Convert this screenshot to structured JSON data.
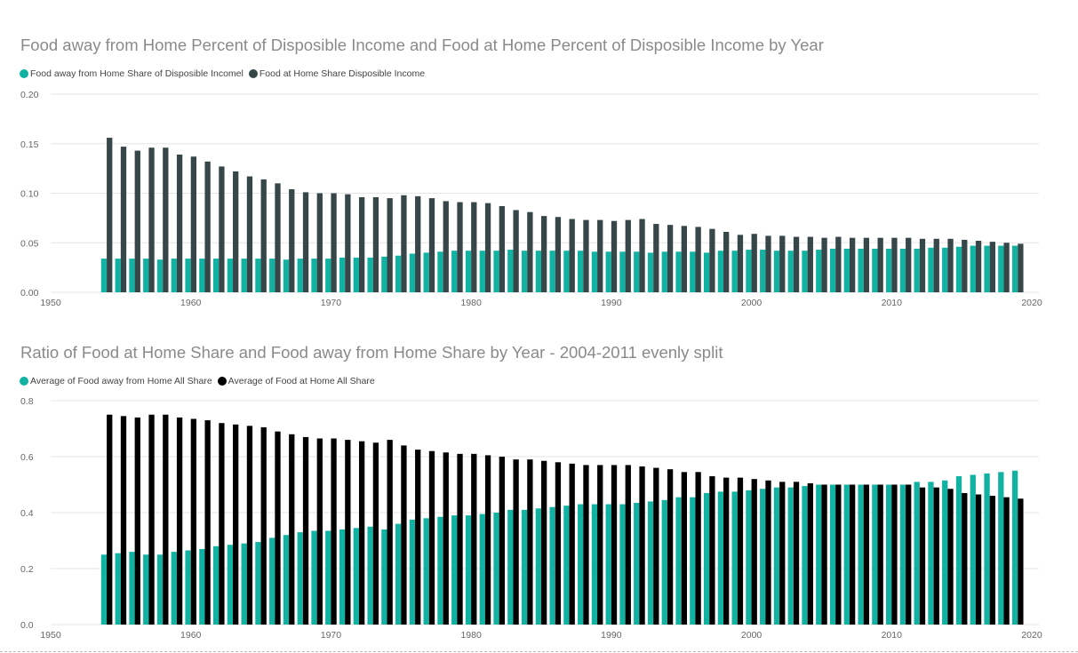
{
  "colors": {
    "teal": "#12b2a3",
    "dark": "#374649",
    "black": "#000000"
  },
  "chart_data": [
    {
      "type": "bar",
      "title": "Food away from Home Percent of Disposible Income and Food at Home Percent of Disposible Income by Year",
      "legend_position": "top-left",
      "grid": true,
      "xlim": [
        1950,
        2020
      ],
      "xticks": [
        1950,
        1960,
        1970,
        1980,
        1990,
        2000,
        2010,
        2020
      ],
      "ylim": [
        0,
        0.2
      ],
      "yticks": [
        "0.00",
        "0.05",
        "0.10",
        "0.15",
        "0.20"
      ],
      "x": [
        1954,
        1955,
        1956,
        1957,
        1958,
        1959,
        1960,
        1961,
        1962,
        1963,
        1964,
        1965,
        1966,
        1967,
        1968,
        1969,
        1970,
        1971,
        1972,
        1973,
        1974,
        1975,
        1976,
        1977,
        1978,
        1979,
        1980,
        1981,
        1982,
        1983,
        1984,
        1985,
        1986,
        1987,
        1988,
        1989,
        1990,
        1991,
        1992,
        1993,
        1994,
        1995,
        1996,
        1997,
        1998,
        1999,
        2000,
        2001,
        2002,
        2003,
        2004,
        2005,
        2006,
        2007,
        2008,
        2009,
        2010,
        2011,
        2012,
        2013,
        2014,
        2015,
        2016,
        2017,
        2018,
        2019
      ],
      "series": [
        {
          "name": "Food away from Home Share of Disposible Incomel",
          "color": "#12b2a3",
          "values": [
            0.034,
            0.034,
            0.034,
            0.034,
            0.033,
            0.034,
            0.034,
            0.034,
            0.034,
            0.034,
            0.034,
            0.034,
            0.034,
            0.033,
            0.034,
            0.034,
            0.034,
            0.035,
            0.035,
            0.035,
            0.036,
            0.037,
            0.039,
            0.04,
            0.041,
            0.042,
            0.042,
            0.042,
            0.042,
            0.043,
            0.042,
            0.042,
            0.042,
            0.042,
            0.042,
            0.041,
            0.041,
            0.041,
            0.041,
            0.04,
            0.041,
            0.041,
            0.041,
            0.04,
            0.042,
            0.042,
            0.043,
            0.043,
            0.042,
            0.042,
            0.042,
            0.043,
            0.044,
            0.044,
            0.044,
            0.044,
            0.044,
            0.044,
            0.044,
            0.045,
            0.045,
            0.046,
            0.047,
            0.047,
            0.047,
            0.047
          ]
        },
        {
          "name": "Food at Home Share Disposible Income",
          "color": "#374649",
          "values": [
            0.156,
            0.147,
            0.143,
            0.146,
            0.146,
            0.139,
            0.137,
            0.132,
            0.127,
            0.122,
            0.117,
            0.114,
            0.11,
            0.104,
            0.101,
            0.1,
            0.1,
            0.099,
            0.096,
            0.096,
            0.095,
            0.098,
            0.097,
            0.095,
            0.092,
            0.091,
            0.091,
            0.09,
            0.087,
            0.083,
            0.081,
            0.077,
            0.076,
            0.074,
            0.073,
            0.073,
            0.072,
            0.073,
            0.074,
            0.069,
            0.068,
            0.067,
            0.066,
            0.064,
            0.061,
            0.058,
            0.059,
            0.057,
            0.057,
            0.056,
            0.056,
            0.055,
            0.056,
            0.055,
            0.055,
            0.055,
            0.055,
            0.055,
            0.054,
            0.054,
            0.054,
            0.053,
            0.052,
            0.051,
            0.05,
            0.049
          ]
        }
      ]
    },
    {
      "type": "bar",
      "title": "Ratio of Food at Home Share and Food away from Home Share by Year - 2004-2011 evenly split",
      "legend_position": "top-left",
      "grid": true,
      "xlim": [
        1950,
        2020
      ],
      "xticks": [
        1950,
        1960,
        1970,
        1980,
        1990,
        2000,
        2010,
        2020
      ],
      "ylim": [
        0,
        0.8
      ],
      "yticks": [
        "0.0",
        "0.2",
        "0.4",
        "0.6",
        "0.8"
      ],
      "x": [
        1954,
        1955,
        1956,
        1957,
        1958,
        1959,
        1960,
        1961,
        1962,
        1963,
        1964,
        1965,
        1966,
        1967,
        1968,
        1969,
        1970,
        1971,
        1972,
        1973,
        1974,
        1975,
        1976,
        1977,
        1978,
        1979,
        1980,
        1981,
        1982,
        1983,
        1984,
        1985,
        1986,
        1987,
        1988,
        1989,
        1990,
        1991,
        1992,
        1993,
        1994,
        1995,
        1996,
        1997,
        1998,
        1999,
        2000,
        2001,
        2002,
        2003,
        2004,
        2005,
        2006,
        2007,
        2008,
        2009,
        2010,
        2011,
        2012,
        2013,
        2014,
        2015,
        2016,
        2017,
        2018,
        2019
      ],
      "series": [
        {
          "name": "Average of Food away from Home All Share",
          "color": "#12b2a3",
          "values": [
            0.25,
            0.255,
            0.26,
            0.25,
            0.25,
            0.26,
            0.265,
            0.27,
            0.28,
            0.285,
            0.29,
            0.295,
            0.31,
            0.32,
            0.33,
            0.335,
            0.335,
            0.34,
            0.345,
            0.35,
            0.34,
            0.36,
            0.375,
            0.38,
            0.385,
            0.39,
            0.39,
            0.395,
            0.4,
            0.41,
            0.41,
            0.415,
            0.42,
            0.425,
            0.43,
            0.43,
            0.43,
            0.43,
            0.435,
            0.44,
            0.445,
            0.455,
            0.455,
            0.47,
            0.475,
            0.475,
            0.48,
            0.485,
            0.49,
            0.49,
            0.495,
            0.5,
            0.5,
            0.5,
            0.5,
            0.5,
            0.5,
            0.5,
            0.51,
            0.51,
            0.515,
            0.53,
            0.535,
            0.54,
            0.545,
            0.55
          ]
        },
        {
          "name": "Average of Food at Home All Share",
          "color": "#000000",
          "values": [
            0.75,
            0.745,
            0.74,
            0.75,
            0.75,
            0.74,
            0.735,
            0.73,
            0.72,
            0.715,
            0.71,
            0.705,
            0.69,
            0.68,
            0.67,
            0.665,
            0.665,
            0.66,
            0.655,
            0.65,
            0.66,
            0.64,
            0.625,
            0.62,
            0.615,
            0.61,
            0.61,
            0.605,
            0.6,
            0.59,
            0.59,
            0.585,
            0.58,
            0.575,
            0.57,
            0.57,
            0.57,
            0.57,
            0.565,
            0.56,
            0.555,
            0.545,
            0.545,
            0.53,
            0.525,
            0.525,
            0.52,
            0.515,
            0.51,
            0.51,
            0.505,
            0.5,
            0.5,
            0.5,
            0.5,
            0.5,
            0.5,
            0.5,
            0.49,
            0.49,
            0.485,
            0.47,
            0.465,
            0.46,
            0.455,
            0.45
          ]
        }
      ]
    }
  ]
}
